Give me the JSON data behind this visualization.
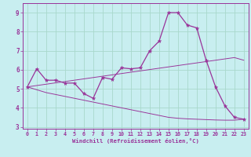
{
  "xlabel": "Windchill (Refroidissement éolien,°C)",
  "background_color": "#c8eef0",
  "grid_color": "#a8d8cc",
  "line_color": "#993399",
  "x_hours": [
    0,
    1,
    2,
    3,
    4,
    5,
    6,
    7,
    8,
    9,
    10,
    11,
    12,
    13,
    14,
    15,
    16,
    17,
    18,
    19,
    20,
    21,
    22,
    23
  ],
  "main_line_y": [
    5.1,
    6.05,
    5.45,
    5.45,
    5.3,
    5.3,
    4.75,
    4.5,
    5.6,
    5.5,
    6.1,
    6.05,
    6.1,
    7.0,
    7.5,
    9.0,
    9.0,
    8.35,
    8.2,
    6.5,
    5.1,
    4.1,
    3.5,
    3.4
  ],
  "trend_up_y": [
    5.1,
    5.17,
    5.24,
    5.31,
    5.38,
    5.45,
    5.52,
    5.59,
    5.66,
    5.73,
    5.8,
    5.87,
    5.94,
    6.01,
    6.08,
    6.15,
    6.22,
    6.29,
    6.36,
    6.43,
    6.5,
    6.57,
    6.64,
    6.5
  ],
  "trend_down_y": [
    5.1,
    4.95,
    4.8,
    4.7,
    4.6,
    4.5,
    4.4,
    4.3,
    4.2,
    4.1,
    4.0,
    3.9,
    3.8,
    3.7,
    3.6,
    3.5,
    3.45,
    3.42,
    3.4,
    3.38,
    3.36,
    3.35,
    3.35,
    3.4
  ],
  "ylim": [
    2.9,
    9.5
  ],
  "xlim": [
    -0.5,
    23.5
  ],
  "yticks": [
    3,
    4,
    5,
    6,
    7,
    8,
    9
  ],
  "xticks": [
    0,
    1,
    2,
    3,
    4,
    5,
    6,
    7,
    8,
    9,
    10,
    11,
    12,
    13,
    14,
    15,
    16,
    17,
    18,
    19,
    20,
    21,
    22,
    23
  ],
  "markersize": 3.5,
  "linewidth": 0.9,
  "figsize": [
    3.2,
    2.0
  ],
  "dpi": 100
}
